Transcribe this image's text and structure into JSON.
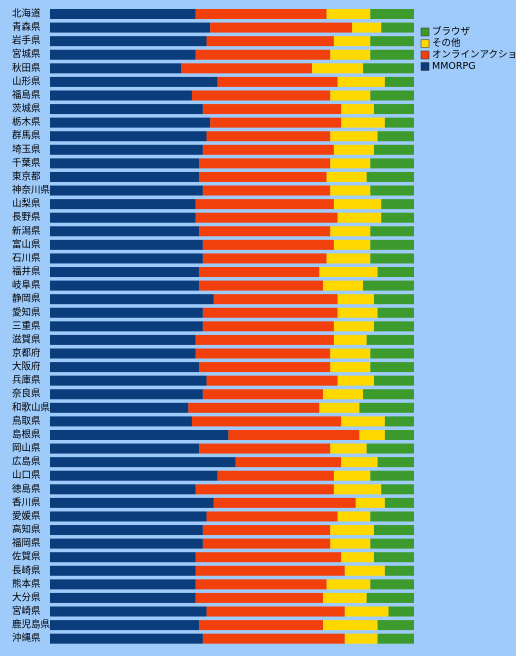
{
  "chart_data": {
    "type": "stacked-bar-horizontal",
    "categories": [
      "北海道",
      "青森県",
      "岩手県",
      "宮城県",
      "秋田県",
      "山形県",
      "福島県",
      "茨城県",
      "栃木県",
      "群馬県",
      "埼玉県",
      "千葉県",
      "東京都",
      "神奈川県",
      "山梨県",
      "長野県",
      "新潟県",
      "富山県",
      "石川県",
      "福井県",
      "岐阜県",
      "静岡県",
      "愛知県",
      "三重県",
      "滋賀県",
      "京都府",
      "大阪府",
      "兵庫県",
      "奈良県",
      "和歌山県",
      "鳥取県",
      "島根県",
      "岡山県",
      "広島県",
      "山口県",
      "徳島県",
      "香川県",
      "愛媛県",
      "高知県",
      "福岡県",
      "佐賀県",
      "長崎県",
      "熊本県",
      "大分県",
      "宮崎県",
      "鹿児島県",
      "沖縄県"
    ],
    "xlim": [
      0,
      100
    ],
    "series": [
      {
        "name": "MMORPG",
        "color": "#0b3c7c",
        "values": [
          40,
          44,
          43,
          40,
          36,
          46,
          39,
          42,
          44,
          43,
          42,
          41,
          41,
          42,
          40,
          40,
          41,
          42,
          42,
          41,
          41,
          45,
          42,
          42,
          40,
          40,
          41,
          43,
          42,
          38,
          39,
          49,
          41,
          51,
          46,
          40,
          45,
          43,
          42,
          42,
          40,
          40,
          40,
          40,
          43,
          41,
          42
        ]
      },
      {
        "name": "オンラインアクション",
        "color": "#f2400c",
        "values": [
          36,
          39,
          35,
          37,
          36,
          33,
          38,
          38,
          36,
          34,
          36,
          36,
          35,
          35,
          38,
          39,
          36,
          36,
          34,
          33,
          34,
          34,
          37,
          36,
          38,
          37,
          36,
          36,
          33,
          36,
          41,
          36,
          36,
          29,
          32,
          38,
          39,
          36,
          35,
          35,
          40,
          41,
          36,
          35,
          38,
          34,
          39
        ]
      },
      {
        "name": "その他",
        "color": "#ffd800",
        "values": [
          12,
          8,
          10,
          11,
          14,
          13,
          11,
          9,
          12,
          13,
          11,
          11,
          11,
          11,
          13,
          12,
          11,
          10,
          12,
          16,
          11,
          10,
          11,
          11,
          9,
          11,
          11,
          10,
          11,
          11,
          12,
          7,
          10,
          10,
          10,
          13,
          8,
          9,
          12,
          11,
          9,
          11,
          12,
          12,
          12,
          15,
          9
        ]
      },
      {
        "name": "ブラウザ",
        "color": "#3d9a2c",
        "values": [
          12,
          9,
          12,
          12,
          14,
          8,
          12,
          11,
          8,
          10,
          11,
          12,
          13,
          12,
          9,
          9,
          12,
          12,
          12,
          10,
          14,
          11,
          10,
          11,
          13,
          12,
          12,
          11,
          14,
          15,
          8,
          8,
          13,
          10,
          12,
          9,
          8,
          12,
          11,
          12,
          11,
          8,
          12,
          13,
          7,
          10,
          10
        ]
      }
    ]
  }
}
